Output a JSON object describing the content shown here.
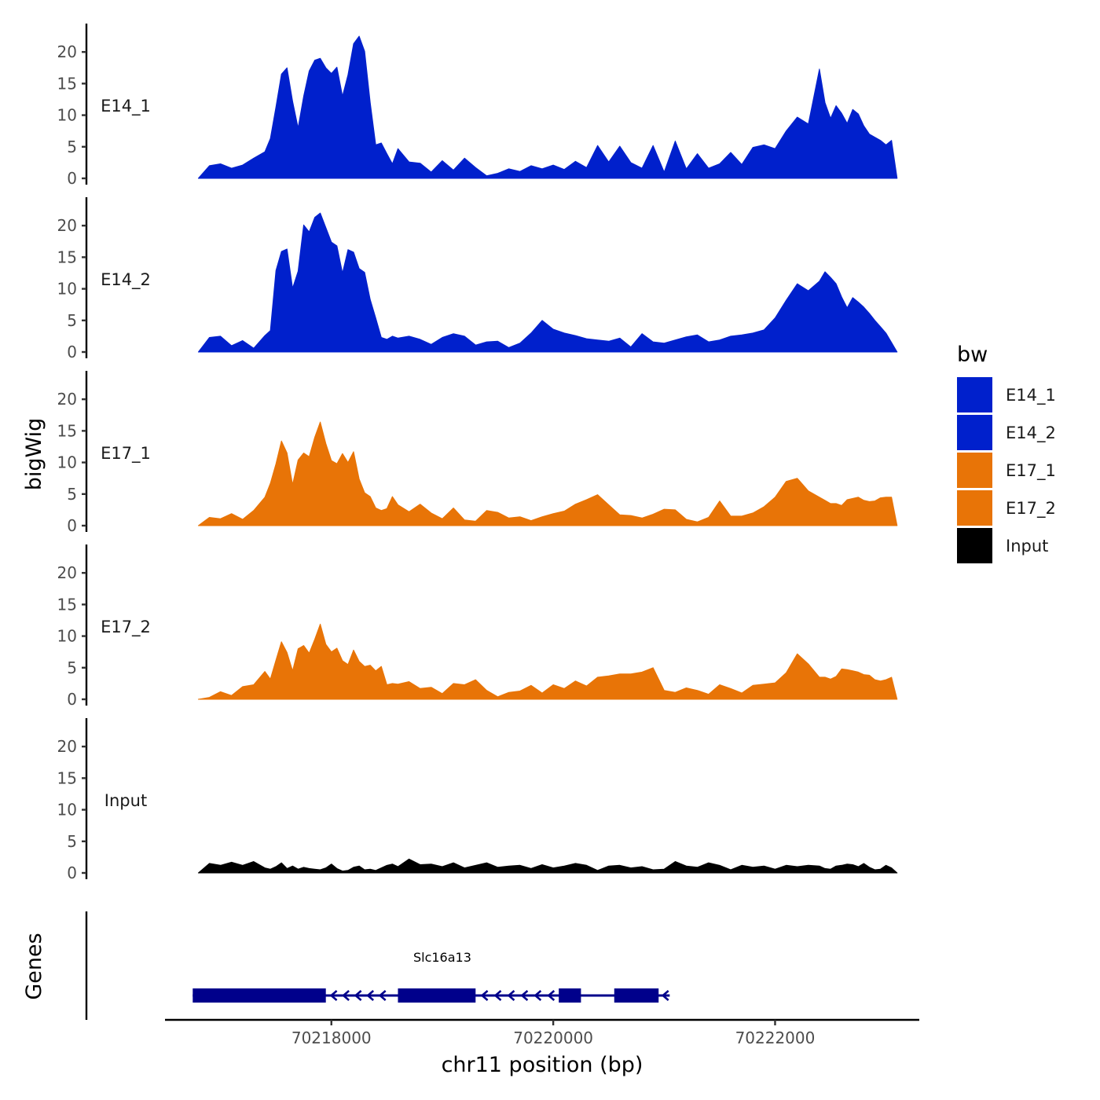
{
  "chart_data": {
    "type": "area",
    "xlabel": "chr11 position (bp)",
    "ylabel": "bigWig",
    "genes_label": "Genes",
    "xlim": [
      70216500,
      70223300
    ],
    "ylim": [
      0,
      23.5
    ],
    "x_ticks": [
      {
        "value": 70218000,
        "label": "70218000"
      },
      {
        "value": 70220000,
        "label": "70220000"
      },
      {
        "value": 70222000,
        "label": "70222000"
      }
    ],
    "y_ticks": [
      {
        "value": 0,
        "label": "0"
      },
      {
        "value": 5,
        "label": "5"
      },
      {
        "value": 10,
        "label": "10"
      },
      {
        "value": 15,
        "label": "15"
      },
      {
        "value": 20,
        "label": "20"
      }
    ],
    "legend": {
      "title": "bw",
      "entries": [
        {
          "name": "E14_1",
          "color": "#0020CC"
        },
        {
          "name": "E14_2",
          "color": "#0020CC"
        },
        {
          "name": "E17_1",
          "color": "#E87407"
        },
        {
          "name": "E17_2",
          "color": "#E87407"
        },
        {
          "name": "Input",
          "color": "#000000"
        }
      ]
    },
    "series": [
      {
        "name": "E14_1",
        "color": "#0020CC",
        "x": [
          70216800,
          70216900,
          70217000,
          70217100,
          70217200,
          70217300,
          70217400,
          70217450,
          70217500,
          70217550,
          70217600,
          70217650,
          70217700,
          70217750,
          70217800,
          70217850,
          70217900,
          70217950,
          70218000,
          70218050,
          70218100,
          70218150,
          70218200,
          70218250,
          70218300,
          70218350,
          70218400,
          70218450,
          70218500,
          70218550,
          70218600,
          70218700,
          70218800,
          70218900,
          70219000,
          70219100,
          70219200,
          70219300,
          70219400,
          70219500,
          70219600,
          70219700,
          70219800,
          70219900,
          70220000,
          70220100,
          70220200,
          70220300,
          70220400,
          70220500,
          70220600,
          70220700,
          70220800,
          70220900,
          70221000,
          70221100,
          70221200,
          70221300,
          70221400,
          70221500,
          70221600,
          70221700,
          70221800,
          70221900,
          70222000,
          70222100,
          70222200,
          70222300,
          70222400,
          70222450,
          70222500,
          70222550,
          70222600,
          70222650,
          70222700,
          70222750,
          70222800,
          70222850,
          70222900,
          70222950,
          70223000,
          70223050,
          70223100
        ],
        "values": [
          0,
          2.0,
          2.3,
          1.6,
          2.1,
          3.2,
          4.2,
          6.3,
          11.3,
          16.5,
          17.5,
          12.2,
          8.0,
          13.0,
          17.0,
          18.7,
          19.0,
          17.5,
          16.6,
          17.6,
          13.0,
          16.4,
          21.3,
          22.5,
          20.1,
          12.0,
          5.3,
          5.6,
          3.9,
          2.3,
          4.7,
          2.6,
          2.4,
          1.0,
          2.8,
          1.3,
          3.2,
          1.7,
          0.4,
          0.8,
          1.5,
          1.1,
          2.0,
          1.5,
          2.1,
          1.4,
          2.7,
          1.7,
          5.2,
          2.6,
          5.1,
          2.5,
          1.6,
          5.2,
          1.0,
          5.9,
          1.5,
          3.9,
          1.6,
          2.3,
          4.1,
          2.2,
          4.9,
          5.3,
          4.7,
          7.5,
          9.7,
          8.6,
          17.3,
          12.0,
          9.5,
          11.5,
          10.3,
          8.7,
          10.9,
          10.2,
          8.3,
          7.0,
          6.5,
          6.0,
          5.3,
          6.0,
          0
        ]
      },
      {
        "name": "E14_2",
        "color": "#0020CC",
        "x": [
          70216800,
          70216900,
          70217000,
          70217100,
          70217200,
          70217300,
          70217400,
          70217450,
          70217500,
          70217550,
          70217600,
          70217650,
          70217700,
          70217750,
          70217800,
          70217850,
          70217900,
          70217950,
          70218000,
          70218050,
          70218100,
          70218150,
          70218200,
          70218250,
          70218300,
          70218350,
          70218400,
          70218450,
          70218500,
          70218550,
          70218600,
          70218700,
          70218800,
          70218900,
          70219000,
          70219100,
          70219200,
          70219300,
          70219400,
          70219500,
          70219600,
          70219700,
          70219800,
          70219900,
          70220000,
          70220100,
          70220200,
          70220300,
          70220400,
          70220500,
          70220600,
          70220700,
          70220800,
          70220900,
          70221000,
          70221100,
          70221200,
          70221300,
          70221400,
          70221500,
          70221600,
          70221700,
          70221800,
          70221900,
          70222000,
          70222100,
          70222200,
          70222300,
          70222400,
          70222450,
          70222500,
          70222550,
          70222600,
          70222650,
          70222700,
          70222750,
          70222800,
          70222850,
          70222900,
          70222950,
          70223000,
          70223050,
          70223100
        ],
        "values": [
          0,
          2.3,
          2.5,
          1.0,
          1.8,
          0.6,
          2.6,
          3.4,
          12.9,
          15.9,
          16.3,
          10.1,
          12.8,
          20.1,
          19.0,
          21.3,
          22.0,
          19.7,
          17.4,
          16.8,
          12.5,
          16.2,
          15.8,
          13.2,
          12.6,
          8.3,
          5.4,
          2.3,
          2.0,
          2.5,
          2.2,
          2.5,
          2.0,
          1.2,
          2.3,
          2.9,
          2.5,
          1.1,
          1.6,
          1.7,
          0.7,
          1.4,
          3.0,
          5.0,
          3.6,
          3.0,
          2.6,
          2.1,
          1.9,
          1.7,
          2.2,
          0.8,
          2.9,
          1.6,
          1.4,
          1.9,
          2.4,
          2.7,
          1.6,
          1.9,
          2.5,
          2.7,
          3.0,
          3.5,
          5.4,
          8.2,
          10.8,
          9.7,
          11.2,
          12.7,
          11.8,
          10.8,
          8.7,
          7.0,
          8.6,
          7.9,
          7.1,
          6.1,
          5.0,
          4.0,
          3.0,
          1.5,
          0
        ]
      },
      {
        "name": "E17_1",
        "color": "#E87407",
        "x": [
          70216800,
          70216900,
          70217000,
          70217100,
          70217200,
          70217300,
          70217400,
          70217450,
          70217500,
          70217550,
          70217600,
          70217650,
          70217700,
          70217750,
          70217800,
          70217850,
          70217900,
          70217950,
          70218000,
          70218050,
          70218100,
          70218150,
          70218200,
          70218250,
          70218300,
          70218350,
          70218400,
          70218450,
          70218500,
          70218550,
          70218600,
          70218700,
          70218800,
          70218900,
          70219000,
          70219100,
          70219200,
          70219300,
          70219400,
          70219500,
          70219600,
          70219700,
          70219800,
          70219900,
          70220000,
          70220100,
          70220200,
          70220300,
          70220400,
          70220500,
          70220600,
          70220700,
          70220800,
          70220900,
          70221000,
          70221100,
          70221200,
          70221300,
          70221400,
          70221500,
          70221600,
          70221700,
          70221800,
          70221900,
          70222000,
          70222100,
          70222200,
          70222300,
          70222400,
          70222450,
          70222500,
          70222550,
          70222600,
          70222650,
          70222700,
          70222750,
          70222800,
          70222850,
          70222900,
          70222950,
          70223000,
          70223050,
          70223100
        ],
        "values": [
          0,
          1.3,
          1.1,
          1.9,
          1.0,
          2.4,
          4.5,
          6.7,
          9.8,
          13.4,
          11.5,
          6.5,
          10.4,
          11.5,
          10.9,
          14.0,
          16.4,
          13.0,
          10.3,
          9.8,
          11.4,
          10.0,
          11.7,
          7.4,
          5.2,
          4.6,
          2.8,
          2.4,
          2.7,
          4.6,
          3.3,
          2.2,
          3.4,
          2.0,
          1.1,
          2.8,
          0.9,
          0.7,
          2.4,
          2.1,
          1.2,
          1.4,
          0.8,
          1.4,
          1.9,
          2.3,
          3.4,
          4.1,
          4.9,
          3.3,
          1.7,
          1.6,
          1.2,
          1.8,
          2.6,
          2.5,
          1.0,
          0.6,
          1.3,
          3.9,
          1.5,
          1.5,
          2.0,
          3.0,
          4.5,
          7.0,
          7.5,
          5.5,
          4.5,
          4.0,
          3.5,
          3.5,
          3.2,
          4.1,
          4.3,
          4.5,
          4.0,
          3.8,
          3.9,
          4.4,
          4.5,
          4.5,
          0
        ]
      },
      {
        "name": "E17_2",
        "color": "#E87407",
        "x": [
          70216800,
          70216900,
          70217000,
          70217100,
          70217200,
          70217300,
          70217400,
          70217450,
          70217500,
          70217550,
          70217600,
          70217650,
          70217700,
          70217750,
          70217800,
          70217850,
          70217900,
          70217950,
          70218000,
          70218050,
          70218100,
          70218150,
          70218200,
          70218250,
          70218300,
          70218350,
          70218400,
          70218450,
          70218500,
          70218550,
          70218600,
          70218700,
          70218800,
          70218900,
          70219000,
          70219100,
          70219200,
          70219300,
          70219400,
          70219500,
          70219600,
          70219700,
          70219800,
          70219900,
          70220000,
          70220100,
          70220200,
          70220300,
          70220400,
          70220500,
          70220600,
          70220700,
          70220800,
          70220900,
          70221000,
          70221100,
          70221200,
          70221300,
          70221400,
          70221500,
          70221600,
          70221700,
          70221800,
          70221900,
          70222000,
          70222100,
          70222200,
          70222300,
          70222400,
          70222450,
          70222500,
          70222550,
          70222600,
          70222650,
          70222700,
          70222750,
          70222800,
          70222850,
          70222900,
          70222950,
          70223000,
          70223050,
          70223100
        ],
        "values": [
          0,
          0.3,
          1.2,
          0.6,
          2.0,
          2.3,
          4.4,
          3.2,
          6.2,
          9.1,
          7.4,
          4.5,
          8.0,
          8.5,
          7.3,
          9.5,
          11.9,
          8.7,
          7.5,
          8.1,
          6.1,
          5.5,
          7.8,
          6.0,
          5.2,
          5.4,
          4.5,
          5.2,
          2.3,
          2.5,
          2.4,
          2.8,
          1.7,
          1.9,
          0.9,
          2.5,
          2.3,
          3.1,
          1.4,
          0.4,
          1.1,
          1.3,
          2.2,
          1.0,
          2.3,
          1.7,
          2.9,
          2.1,
          3.5,
          3.7,
          4.0,
          4.0,
          4.3,
          5.0,
          1.4,
          1.1,
          1.8,
          1.4,
          0.8,
          2.3,
          1.7,
          1.0,
          2.2,
          2.4,
          2.6,
          4.2,
          7.2,
          5.6,
          3.5,
          3.5,
          3.2,
          3.6,
          4.8,
          4.7,
          4.5,
          4.3,
          3.9,
          3.8,
          3.1,
          2.9,
          3.1,
          3.5,
          0
        ]
      },
      {
        "name": "Input",
        "color": "#000000",
        "x": [
          70216800,
          70216900,
          70217000,
          70217100,
          70217200,
          70217300,
          70217400,
          70217450,
          70217500,
          70217550,
          70217600,
          70217650,
          70217700,
          70217750,
          70217800,
          70217850,
          70217900,
          70217950,
          70218000,
          70218050,
          70218100,
          70218150,
          70218200,
          70218250,
          70218300,
          70218350,
          70218400,
          70218450,
          70218500,
          70218550,
          70218600,
          70218700,
          70218800,
          70218900,
          70219000,
          70219100,
          70219200,
          70219300,
          70219400,
          70219500,
          70219600,
          70219700,
          70219800,
          70219900,
          70220000,
          70220100,
          70220200,
          70220300,
          70220400,
          70220500,
          70220600,
          70220700,
          70220800,
          70220900,
          70221000,
          70221100,
          70221200,
          70221300,
          70221400,
          70221500,
          70221600,
          70221700,
          70221800,
          70221900,
          70222000,
          70222100,
          70222200,
          70222300,
          70222400,
          70222450,
          70222500,
          70222550,
          70222600,
          70222650,
          70222700,
          70222750,
          70222800,
          70222850,
          70222900,
          70222950,
          70223000,
          70223050,
          70223100
        ],
        "values": [
          0,
          1.5,
          1.2,
          1.7,
          1.2,
          1.8,
          0.8,
          0.6,
          1.0,
          1.6,
          0.7,
          1.1,
          0.6,
          0.9,
          0.7,
          0.6,
          0.5,
          0.8,
          1.4,
          0.7,
          0.3,
          0.4,
          0.9,
          1.1,
          0.5,
          0.6,
          0.4,
          0.8,
          1.2,
          1.4,
          1.0,
          2.2,
          1.3,
          1.4,
          1.0,
          1.6,
          0.8,
          1.2,
          1.6,
          0.9,
          1.1,
          1.2,
          0.7,
          1.3,
          0.8,
          1.1,
          1.5,
          1.2,
          0.4,
          1.1,
          1.2,
          0.8,
          1.0,
          0.5,
          0.6,
          1.8,
          1.1,
          0.9,
          1.6,
          1.2,
          0.5,
          1.2,
          0.9,
          1.1,
          0.6,
          1.2,
          1.0,
          1.2,
          1.1,
          0.7,
          0.6,
          1.1,
          1.2,
          1.4,
          1.3,
          1.0,
          1.5,
          0.9,
          0.5,
          0.6,
          1.2,
          0.8,
          0
        ]
      }
    ],
    "gene": {
      "name": "Slc16a13",
      "color": "#00008B",
      "start": 70216750,
      "end": 70221050,
      "strand": "-",
      "exons": [
        [
          70216750,
          70217950
        ],
        [
          70218600,
          70219300
        ],
        [
          70220050,
          70220250
        ],
        [
          70220550,
          70220950
        ]
      ],
      "arrows": [
        70218020,
        70218130,
        70218240,
        70218350,
        70218460,
        70219380,
        70219500,
        70219620,
        70219740,
        70219860,
        70219980,
        70221010
      ]
    }
  }
}
